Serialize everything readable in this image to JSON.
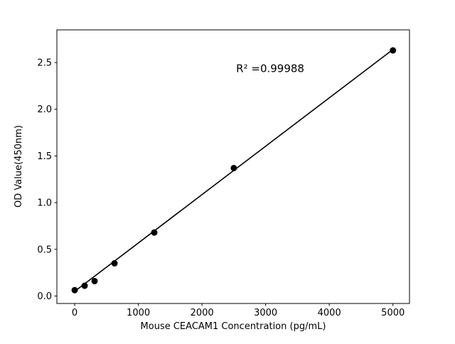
{
  "figure": {
    "background": "#ffffff"
  },
  "chart_data": {
    "type": "scatter",
    "title": "",
    "xlabel": "Mouse CEACAM1 Concentration (pg/mL)",
    "ylabel": "OD Value(450nm)",
    "x": [
      0,
      156.25,
      312.5,
      625,
      1250,
      2500,
      5000
    ],
    "y": [
      0.063,
      0.11,
      0.16,
      0.35,
      0.68,
      1.37,
      2.63
    ],
    "trendline": {
      "x1": 0,
      "y1": 0.05,
      "x2": 5000,
      "y2": 2.64
    },
    "xlim": [
      -280,
      5260
    ],
    "ylim": [
      -0.08,
      2.85
    ],
    "xticks": [
      0,
      1000,
      2000,
      3000,
      4000,
      5000
    ],
    "yticks": [
      0.0,
      0.5,
      1.0,
      1.5,
      2.0,
      2.5
    ],
    "ytick_decimals": 1,
    "annotation": {
      "text": "R² =0.99988",
      "ax": 0.605,
      "ay": 0.846
    },
    "marker_color": "#000000",
    "line_color": "#000000",
    "spine_color": "#000000",
    "grid": false,
    "legend": null
  }
}
